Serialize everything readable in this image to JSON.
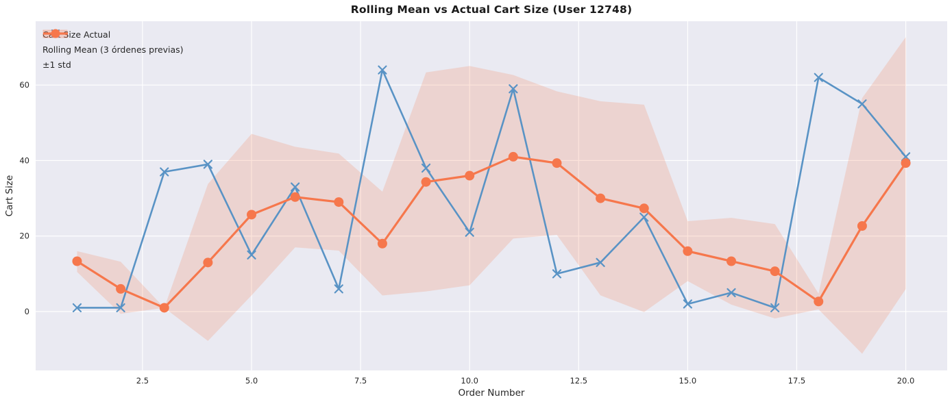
{
  "chart_data": {
    "type": "line",
    "title": "Rolling Mean vs Actual Cart Size (User 12748)",
    "xlabel": "Order Number",
    "ylabel": "Cart Size",
    "x": [
      1,
      2,
      3,
      4,
      5,
      6,
      7,
      8,
      9,
      10,
      11,
      12,
      13,
      14,
      15,
      16,
      17,
      18,
      19,
      20
    ],
    "series": [
      {
        "name": "Cart Size Actual",
        "color": "#5993C5",
        "marker": "x",
        "line_width": 2.6,
        "values": [
          1,
          1,
          37,
          39,
          15,
          33,
          6,
          64,
          38,
          21,
          59,
          10,
          13,
          25,
          2,
          5,
          1,
          62,
          55,
          41
        ]
      },
      {
        "name": "Rolling Mean (3 órdenes previas)",
        "color": "#F6774C",
        "marker": "circle",
        "line_width": 3.2,
        "values": [
          13.33,
          6.0,
          1.0,
          13.0,
          25.67,
          30.33,
          29.0,
          18.0,
          34.33,
          36.0,
          41.0,
          39.33,
          30.0,
          27.33,
          16.0,
          13.33,
          10.67,
          2.67,
          22.67,
          39.33
        ]
      }
    ],
    "band": {
      "name": "±1 std",
      "fill_color": "#F6774C",
      "fill_alpha": 0.2,
      "upper": [
        16.0,
        13.2,
        1.0,
        33.78,
        47.06,
        43.65,
        41.86,
        31.75,
        63.34,
        65.05,
        62.66,
        58.34,
        55.71,
        54.79,
        23.94,
        24.83,
        23.17,
        4.75,
        56.53,
        72.71
      ],
      "lower": [
        10.5,
        -0.6,
        1.0,
        -7.78,
        4.28,
        17.01,
        16.14,
        4.25,
        5.32,
        6.95,
        19.34,
        20.32,
        4.29,
        -0.13,
        8.06,
        1.83,
        -1.83,
        0.59,
        -11.19,
        5.95
      ]
    },
    "xticks": {
      "values": [
        2.5,
        5.0,
        7.5,
        10.0,
        12.5,
        15.0,
        17.5,
        20.0
      ],
      "labels": [
        "2.5",
        "5.0",
        "7.5",
        "10.0",
        "12.5",
        "15.0",
        "17.5",
        "20.0"
      ]
    },
    "yticks": {
      "values": [
        0,
        20,
        40,
        60
      ],
      "labels": [
        "0",
        "20",
        "40",
        "60"
      ]
    },
    "xlim": [
      0.05,
      20.95
    ],
    "ylim": [
      -15.6,
      76.9
    ],
    "grid": true,
    "legend_position": "upper-left",
    "legend_entries": [
      "Cart Size Actual",
      "Rolling Mean (3 órdenes previas)",
      "±1 std"
    ],
    "styles": {
      "axes_bg": "#EAEAF2",
      "grid_color": "#FFFFFF",
      "figure_bg": "#FFFFFF",
      "text_color": "#262626"
    }
  }
}
